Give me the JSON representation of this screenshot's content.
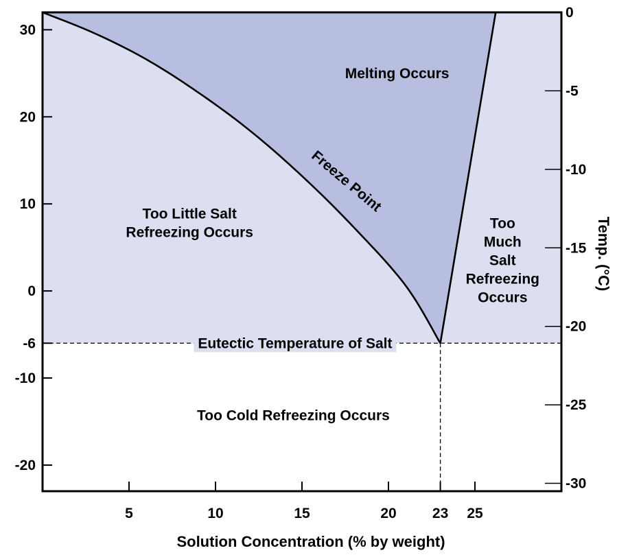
{
  "chart_data": {
    "type": "area",
    "title": "",
    "xlabel": "Solution Concentration (% by weight)",
    "ylabel_left": "",
    "ylabel_right": "Temp. (°C)",
    "xlim": [
      0,
      30
    ],
    "ylim_left": [
      -23,
      32
    ],
    "ylim_right": [
      -30.5,
      0
    ],
    "x_ticks": [
      {
        "value": 5,
        "label": "5"
      },
      {
        "value": 10,
        "label": "10"
      },
      {
        "value": 15,
        "label": "15"
      },
      {
        "value": 20,
        "label": "20"
      },
      {
        "value": 23,
        "label": "23"
      },
      {
        "value": 25,
        "label": "25"
      }
    ],
    "y_ticks_left": [
      {
        "value": 30,
        "label": "30"
      },
      {
        "value": 20,
        "label": "20"
      },
      {
        "value": 10,
        "label": "10"
      },
      {
        "value": 0,
        "label": "0"
      },
      {
        "value": -6,
        "label": "-6"
      },
      {
        "value": -10,
        "label": "-10"
      },
      {
        "value": -20,
        "label": "-20"
      }
    ],
    "y_ticks_right": [
      {
        "value": 0,
        "label": "0"
      },
      {
        "value": -5,
        "label": "-5"
      },
      {
        "value": -10,
        "label": "-10"
      },
      {
        "value": -15,
        "label": "-15"
      },
      {
        "value": -20,
        "label": "-20"
      },
      {
        "value": -25,
        "label": "-25"
      },
      {
        "value": -30,
        "label": "-30"
      }
    ],
    "series": [
      {
        "name": "Freeze Point",
        "x": [
          0,
          3,
          6,
          9,
          12,
          15,
          18,
          21,
          23
        ],
        "y": [
          32,
          29.6,
          26.6,
          22.8,
          18.4,
          13.2,
          7.3,
          0.6,
          -6
        ]
      },
      {
        "name": "",
        "x": [
          23,
          26.2
        ],
        "y": [
          -6,
          32
        ]
      }
    ],
    "eutectic": {
      "x": 23,
      "y": -6,
      "label": "Eutectic Temperature of Salt"
    },
    "regions": [
      {
        "lines": [
          "Melting Occurs"
        ],
        "x": 20.5,
        "y": 25
      },
      {
        "lines": [
          "Too Little Salt",
          "Refreezing Occurs"
        ],
        "x": 8.5,
        "y": 7.8
      },
      {
        "lines": [
          "Too",
          "Much",
          "Salt",
          "Refreezing",
          "Occurs"
        ],
        "x": 26.6,
        "y": 3.5
      },
      {
        "lines": [
          "Too Cold Refreezing Occurs"
        ],
        "x": 14.5,
        "y": -14.3
      }
    ],
    "curve_label": {
      "text": "Freeze Point",
      "x": 17.4,
      "y": 12.2,
      "angle": 40
    },
    "colors": {
      "melting_fill": "#b8bedf",
      "refreeze_fill": "#dcdfef",
      "too_cold_fill": "#ffffff",
      "line": "#000000"
    }
  }
}
